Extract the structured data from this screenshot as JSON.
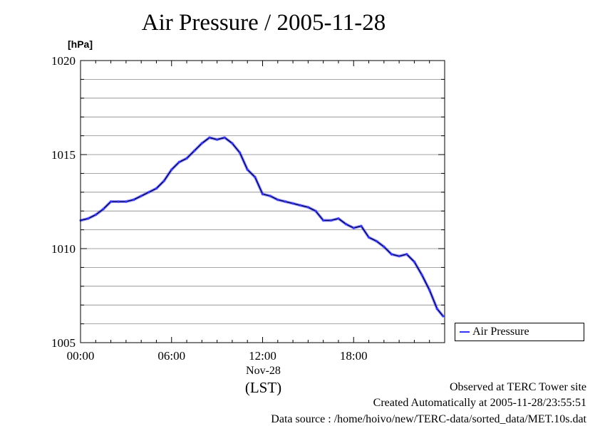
{
  "chart_data": {
    "type": "line",
    "title": "Air Pressure / 2005-11-28",
    "ylabel": "[hPa]",
    "xlabel": "(LST)",
    "x_date_label": "Nov-28",
    "ylim": [
      1005,
      1020
    ],
    "xlim_hours": [
      0,
      24
    ],
    "x_ticks": [
      {
        "h": 0,
        "label": "00:00"
      },
      {
        "h": 6,
        "label": "06:00"
      },
      {
        "h": 12,
        "label": "12:00"
      },
      {
        "h": 18,
        "label": "18:00"
      }
    ],
    "y_ticks": [
      1005,
      1010,
      1015,
      1020
    ],
    "grid": true,
    "legend_position": "bottom-right",
    "series": [
      {
        "name": "Air Pressure",
        "color": "#3333ff",
        "x_hours": [
          0,
          0.5,
          1,
          1.5,
          2,
          2.5,
          3,
          3.5,
          4,
          4.5,
          5,
          5.5,
          6,
          6.5,
          7,
          7.5,
          8,
          8.5,
          9,
          9.5,
          10,
          10.5,
          11,
          11.5,
          12,
          12.5,
          13,
          13.5,
          14,
          14.5,
          15,
          15.5,
          16,
          16.5,
          17,
          17.5,
          18,
          18.5,
          19,
          19.5,
          20,
          20.5,
          21,
          21.5,
          22,
          22.5,
          23,
          23.5,
          23.9
        ],
        "values": [
          1011.5,
          1011.6,
          1011.8,
          1012.1,
          1012.5,
          1012.5,
          1012.5,
          1012.6,
          1012.8,
          1013.0,
          1013.2,
          1013.6,
          1014.2,
          1014.6,
          1014.8,
          1015.2,
          1015.6,
          1015.9,
          1015.8,
          1015.9,
          1015.6,
          1015.1,
          1014.2,
          1013.8,
          1012.9,
          1012.8,
          1012.6,
          1012.5,
          1012.4,
          1012.3,
          1012.2,
          1012.0,
          1011.5,
          1011.5,
          1011.6,
          1011.3,
          1011.1,
          1011.2,
          1010.6,
          1010.4,
          1010.1,
          1009.7,
          1009.6,
          1009.7,
          1009.3,
          1008.6,
          1007.8,
          1006.8,
          1006.4
        ]
      }
    ]
  },
  "footer": {
    "line1": "Observed at TERC Tower site",
    "line2": "Created Automatically at 2005-11-28/23:55:51",
    "line3": "Data source : /home/hoivo/new/TERC-data/sorted_data/MET.10s.dat"
  }
}
